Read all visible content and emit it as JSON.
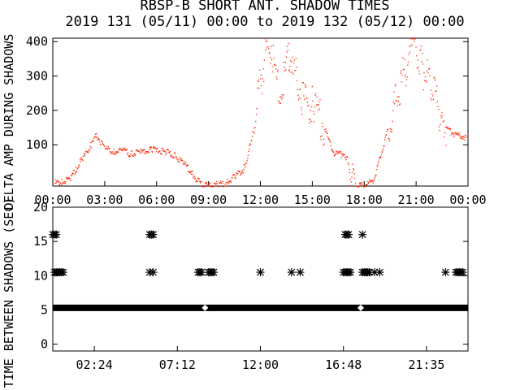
{
  "title_line1": "RBSP-B SHORT ANT. SHADOW TIMES",
  "title_line2": "2019 131 (05/11) 00:00 to 2019 132 (05/12) 00:00",
  "colors": {
    "trace": "#ff2200",
    "axis": "#000000",
    "background": "#ffffff"
  },
  "chart_data": [
    {
      "type": "scatter",
      "ylabel": "DELTA AMP DURING SHADOWS",
      "xlim": [
        0,
        24
      ],
      "ylim": [
        -20,
        410
      ],
      "x_tick_labels": [
        "00:00",
        "03:00",
        "06:00",
        "09:00",
        "12:00",
        "15:00",
        "18:00",
        "21:00",
        "00:00"
      ],
      "y_tick_labels": [
        "100",
        "200",
        "300",
        "400"
      ],
      "y_tick_values": [
        100,
        200,
        300,
        400
      ],
      "series": [
        {
          "color": "#ff2200",
          "x": [
            0.1,
            0.5,
            1.0,
            1.3,
            1.7,
            1.9,
            2.2,
            2.5,
            3.0,
            3.5,
            4.0,
            4.5,
            5.0,
            5.3,
            5.7,
            6.0,
            6.5,
            7.0,
            7.5,
            8.0,
            8.3,
            8.5,
            8.7,
            9.0,
            9.5,
            10.0,
            10.5,
            11.0,
            11.2,
            11.5,
            11.7,
            11.9,
            12.1,
            12.3,
            12.6,
            12.9,
            13.2,
            13.5,
            13.8,
            14.0,
            14.3,
            14.6,
            15.0,
            15.3,
            15.6,
            15.9,
            16.2,
            16.5,
            16.8,
            17.0,
            17.2,
            17.3,
            17.5,
            17.7,
            18.0,
            18.3,
            18.5,
            20.8,
            21.0,
            21.2,
            21.4,
            21.6,
            21.8,
            22.0,
            22.2,
            22.4,
            22.6,
            22.8,
            23.0,
            23.3,
            23.6,
            23.9
          ],
          "y": [
            -10,
            -8,
            5,
            30,
            60,
            80,
            100,
            130,
            90,
            80,
            85,
            75,
            80,
            80,
            90,
            85,
            80,
            70,
            50,
            20,
            0,
            -10,
            -15,
            -18,
            -15,
            -10,
            10,
            30,
            60,
            120,
            180,
            260,
            320,
            380,
            400,
            280,
            250,
            330,
            380,
            300,
            260,
            220,
            230,
            190,
            160,
            120,
            80,
            70,
            80,
            60,
            -10,
            40,
            -15,
            -18,
            -15,
            -10,
            -5,
            400,
            380,
            350,
            320,
            300,
            280,
            250,
            230,
            180,
            160,
            150,
            140,
            130,
            130,
            120
          ]
        }
      ]
    },
    {
      "type": "scatter",
      "ylabel": "TIME BETWEEN SHADOWS (SEC)",
      "xlim": [
        0,
        24
      ],
      "ylim": [
        -1,
        20
      ],
      "x_tick_labels": [
        "02:24",
        "07:12",
        "12:00",
        "16:48",
        "21:35"
      ],
      "y_tick_labels": [
        "0",
        "5",
        "10",
        "15",
        "20"
      ],
      "y_tick_values": [
        0,
        5,
        10,
        15,
        20
      ],
      "marker": "*",
      "series": [
        {
          "color": "#000000",
          "x": [
            0.1,
            0.2,
            0.3,
            0.4,
            0.5,
            0.6,
            5.6,
            5.7,
            5.8,
            5.6,
            5.8,
            8.4,
            8.5,
            8.6,
            9.0,
            9.1,
            9.2,
            9.3,
            12.0,
            13.8,
            14.3,
            16.8,
            16.9,
            17.0,
            17.1,
            17.2,
            16.9,
            17.0,
            17.1,
            17.9,
            18.0,
            18.1,
            18.2,
            18.3,
            18.6,
            18.9,
            22.7,
            23.3,
            23.4,
            23.5,
            23.6,
            23.7
          ],
          "y": [
            10.5,
            10.5,
            10.5,
            10.5,
            10.5,
            10.5,
            16,
            16,
            16,
            10.5,
            10.5,
            10.5,
            10.5,
            10.5,
            10.5,
            10.5,
            10.5,
            10.5,
            10.5,
            10.5,
            10.5,
            10.5,
            10.5,
            10.5,
            10.5,
            10.5,
            16,
            16,
            16,
            10.5,
            10.5,
            10.5,
            10.5,
            10.5,
            10.5,
            10.5,
            10.5,
            10.5,
            10.5,
            10.5,
            10.5,
            10.5
          ]
        },
        {
          "color": "#000000",
          "x": [
            0.0,
            0.1,
            0.2
          ],
          "y": [
            16,
            16,
            16
          ]
        },
        {
          "color": "#000000",
          "x": [
            17.9
          ],
          "y": [
            16
          ]
        },
        {
          "color": "#000000",
          "x_range": [
            0,
            24
          ],
          "y": 5.3,
          "markers_at": [
            8.8,
            17.8
          ]
        }
      ]
    }
  ]
}
